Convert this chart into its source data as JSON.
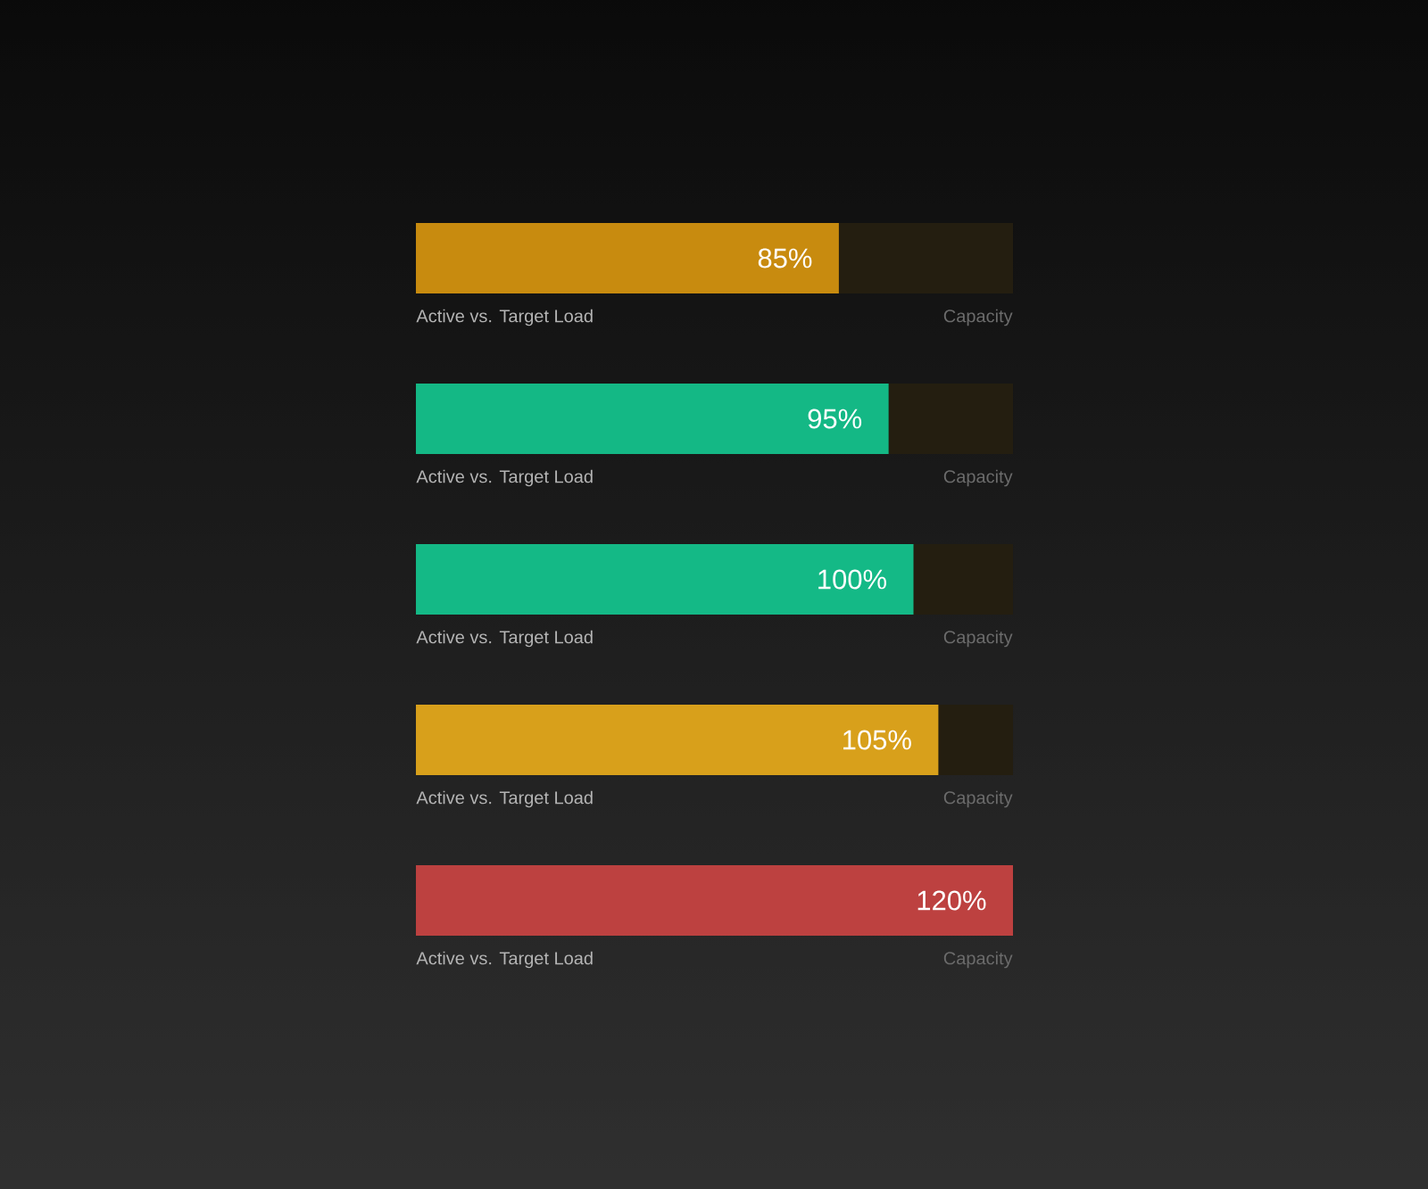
{
  "chart_data": {
    "type": "bar",
    "orientation": "horizontal",
    "tick_labels": "y",
    "categories": [
      "Active vs. Target Load",
      "Active vs. Target Load",
      "Active vs. Target Load",
      "Active vs. Target Load",
      "Active vs. Target Load"
    ],
    "values": [
      85,
      95,
      100,
      105,
      120
    ],
    "colors": [
      "#c88b0f",
      "#14b885",
      "#14b986",
      "#d8a01b",
      "#bd4140"
    ],
    "value_labels": [
      "85%",
      "95%",
      "100%",
      "105%",
      "120%"
    ],
    "xlim": [
      0,
      120
    ],
    "annotations": [
      "Capacity",
      "Capacity",
      "Capacity",
      "Capacity",
      "Capacity"
    ]
  }
}
